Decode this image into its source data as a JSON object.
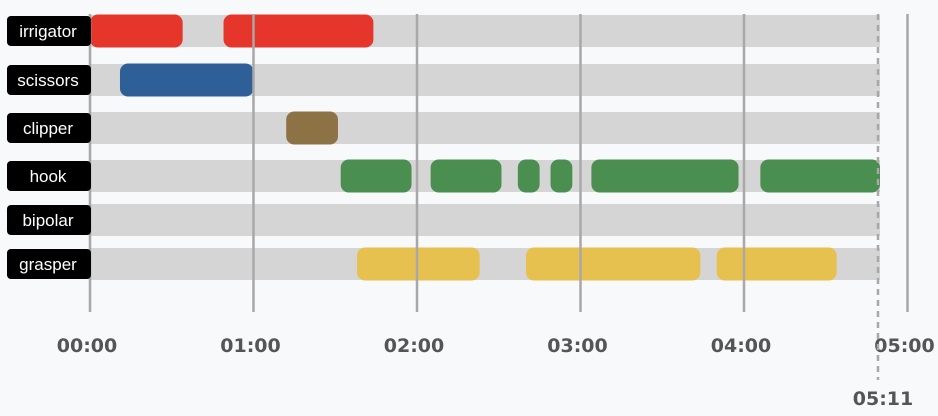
{
  "colors": {
    "background": "#f8f9fb",
    "track": "#d5d5d5",
    "label_bg": "#000000",
    "label_text": "#ffffff",
    "gridline": "#a8a8a8",
    "tick_text": "#555555",
    "end_marker": "#a8a8a8"
  },
  "chart_data": {
    "type": "timeline",
    "x_unit": "seconds",
    "xlim": [
      0,
      311
    ],
    "ticks": [
      {
        "value": 0,
        "label": "00:00"
      },
      {
        "value": 60,
        "label": "01:00"
      },
      {
        "value": 120,
        "label": "02:00"
      },
      {
        "value": 180,
        "label": "03:00"
      },
      {
        "value": 240,
        "label": "04:00"
      },
      {
        "value": 300,
        "label": "05:00"
      }
    ],
    "end_marker": {
      "value": 311,
      "label": "05:11"
    },
    "rows": [
      {
        "name": "irrigator",
        "color": "#e6352a",
        "segments": [
          [
            0,
            34
          ],
          [
            49,
            104
          ]
        ]
      },
      {
        "name": "scissors",
        "color": "#2e6097",
        "segments": [
          [
            11,
            60
          ]
        ]
      },
      {
        "name": "clipper",
        "color": "#8d7245",
        "segments": [
          [
            72,
            91
          ]
        ]
      },
      {
        "name": "hook",
        "color": "#4a8f4f",
        "segments": [
          [
            92,
            118
          ],
          [
            125,
            151
          ],
          [
            157,
            165
          ],
          [
            169,
            177
          ],
          [
            184,
            238
          ],
          [
            246,
            311
          ]
        ]
      },
      {
        "name": "bipolar",
        "color": "#888888",
        "segments": []
      },
      {
        "name": "grasper",
        "color": "#e6c14f",
        "segments": [
          [
            98,
            143
          ],
          [
            160,
            224
          ],
          [
            230,
            274
          ]
        ]
      }
    ]
  }
}
